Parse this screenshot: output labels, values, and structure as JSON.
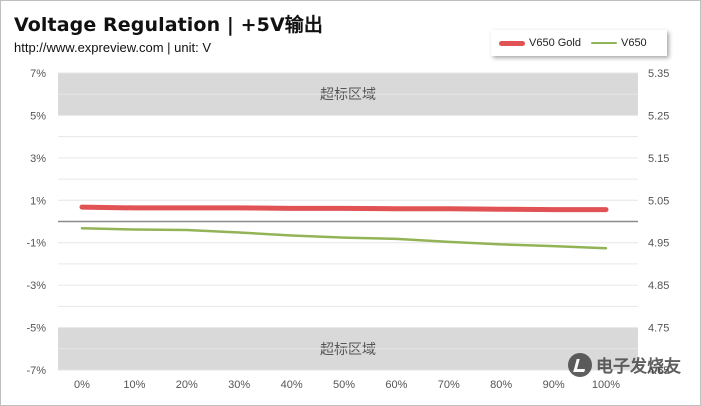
{
  "chart_data": {
    "type": "line",
    "title": "Voltage Regulation | +5V输出",
    "subtitle": "http://www.expreview.com | unit: V",
    "categories": [
      "0%",
      "10%",
      "20%",
      "30%",
      "40%",
      "50%",
      "60%",
      "70%",
      "80%",
      "90%",
      "100%"
    ],
    "series": [
      {
        "name": "V650 Gold",
        "color": "#e05254",
        "values": [
          5.034,
          5.032,
          5.032,
          5.032,
          5.031,
          5.031,
          5.03,
          5.03,
          5.029,
          5.028,
          5.028
        ]
      },
      {
        "name": "V650",
        "color": "#92b457",
        "values": [
          4.984,
          4.981,
          4.98,
          4.974,
          4.967,
          4.962,
          4.959,
          4.952,
          4.946,
          4.942,
          4.937
        ]
      }
    ],
    "left_axis": {
      "ticks": [
        "7%",
        "5%",
        "3%",
        "1%",
        "-1%",
        "-3%",
        "-5%",
        "-7%"
      ],
      "range": [
        -7,
        7
      ]
    },
    "right_axis": {
      "ticks": [
        "5.35",
        "5.25",
        "5.15",
        "5.05",
        "4.95",
        "4.85",
        "4.75",
        "4.65"
      ],
      "range": [
        4.65,
        5.35
      ]
    },
    "reference_line": 5.0,
    "bands": [
      {
        "label": "超标区域",
        "range": [
          5.25,
          5.35
        ]
      },
      {
        "label": "超标区域",
        "range": [
          4.65,
          4.75
        ]
      }
    ],
    "grid": true,
    "legend_position": "top-right"
  },
  "watermark": {
    "text": "电子发烧友",
    "icon": "logo-icon"
  }
}
